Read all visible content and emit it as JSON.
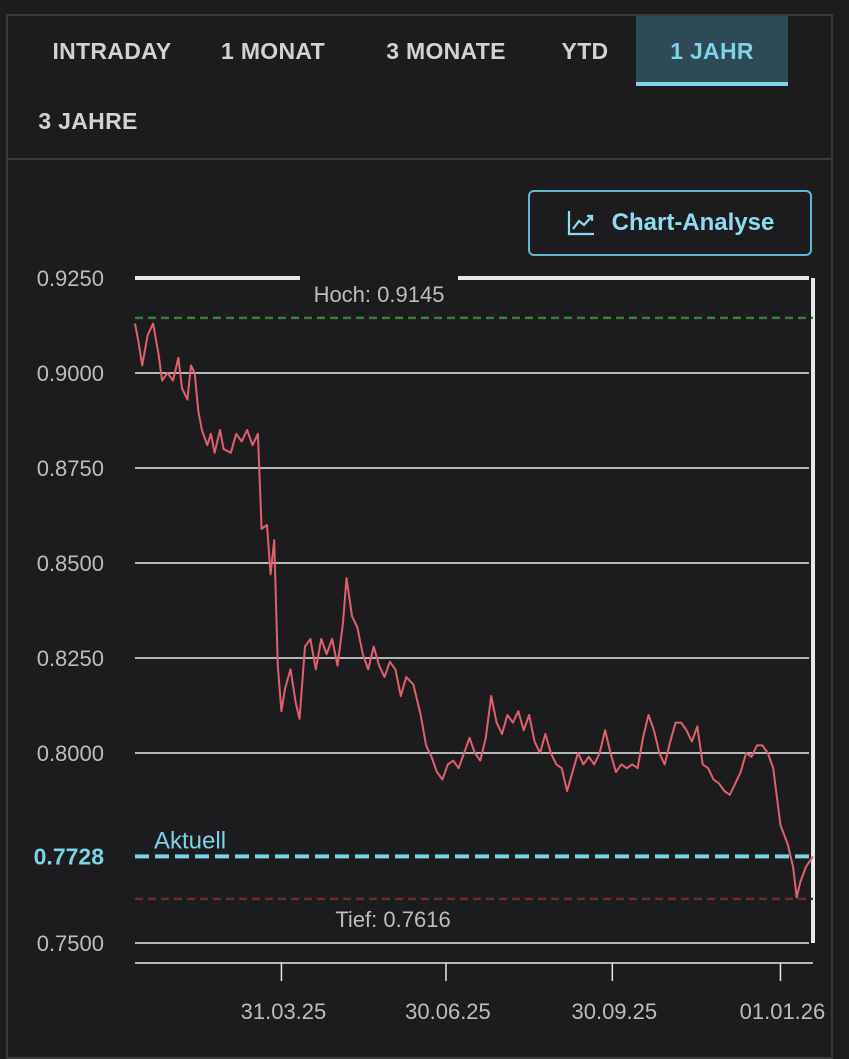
{
  "tabs": [
    {
      "label": "INTRADAY",
      "active": false
    },
    {
      "label": "1 MONAT",
      "active": false
    },
    {
      "label": "3 MONATE",
      "active": false
    },
    {
      "label": "YTD",
      "active": false
    },
    {
      "label": "1 JAHR",
      "active": true
    },
    {
      "label": "3 JAHRE",
      "active": false
    }
  ],
  "analysis_button": {
    "label": "Chart-Analyse",
    "icon": "chart-trend-icon"
  },
  "colors": {
    "line": "#e0606e",
    "current": "#7dd3ea",
    "high": "#3e7a3e",
    "low": "#6e2a2a",
    "grid": "#e8e8e8",
    "active_tab_bg": "#2d4a55"
  },
  "chart_data": {
    "type": "line",
    "y_ticks": [
      "0.9250",
      "0.9000",
      "0.8750",
      "0.8500",
      "0.8250",
      "0.8000",
      "0.7500"
    ],
    "y_tick_values": [
      0.925,
      0.9,
      0.875,
      0.85,
      0.825,
      0.8,
      0.75
    ],
    "ylim": [
      0.75,
      0.925
    ],
    "x_ticks": [
      "31.03.25",
      "30.06.25",
      "30.09.25",
      "01.01.26"
    ],
    "x_tick_dates": [
      "2025-03-31",
      "2025-06-30",
      "2025-09-30",
      "2026-01-01"
    ],
    "xlim": [
      "2025-01-09",
      "2026-01-19"
    ],
    "high_label": "Hoch: 0.9145",
    "high_value": 0.9145,
    "low_label": "Tief: 0.7616",
    "low_value": 0.7616,
    "current_label": "Aktuell",
    "current_value_text": "0.7728",
    "current_value": 0.7728,
    "series": [
      {
        "points": [
          [
            "2025-01-09",
            0.913
          ],
          [
            "2025-01-11",
            0.908
          ],
          [
            "2025-01-13",
            0.902
          ],
          [
            "2025-01-16",
            0.91
          ],
          [
            "2025-01-19",
            0.913
          ],
          [
            "2025-01-22",
            0.905
          ],
          [
            "2025-01-24",
            0.898
          ],
          [
            "2025-01-27",
            0.9
          ],
          [
            "2025-01-30",
            0.898
          ],
          [
            "2025-02-02",
            0.904
          ],
          [
            "2025-02-04",
            0.896
          ],
          [
            "2025-02-07",
            0.893
          ],
          [
            "2025-02-09",
            0.902
          ],
          [
            "2025-02-11",
            0.9
          ],
          [
            "2025-02-13",
            0.89
          ],
          [
            "2025-02-15",
            0.885
          ],
          [
            "2025-02-18",
            0.881
          ],
          [
            "2025-02-20",
            0.884
          ],
          [
            "2025-02-22",
            0.879
          ],
          [
            "2025-02-25",
            0.885
          ],
          [
            "2025-02-27",
            0.88
          ],
          [
            "2025-03-03",
            0.879
          ],
          [
            "2025-03-06",
            0.884
          ],
          [
            "2025-03-09",
            0.882
          ],
          [
            "2025-03-12",
            0.885
          ],
          [
            "2025-03-15",
            0.881
          ],
          [
            "2025-03-18",
            0.884
          ],
          [
            "2025-03-20",
            0.859
          ],
          [
            "2025-03-23",
            0.86
          ],
          [
            "2025-03-25",
            0.847
          ],
          [
            "2025-03-27",
            0.856
          ],
          [
            "2025-03-29",
            0.823
          ],
          [
            "2025-03-31",
            0.811
          ],
          [
            "2025-04-02",
            0.817
          ],
          [
            "2025-04-05",
            0.822
          ],
          [
            "2025-04-08",
            0.813
          ],
          [
            "2025-04-10",
            0.809
          ],
          [
            "2025-04-13",
            0.828
          ],
          [
            "2025-04-16",
            0.83
          ],
          [
            "2025-04-19",
            0.822
          ],
          [
            "2025-04-22",
            0.83
          ],
          [
            "2025-04-25",
            0.826
          ],
          [
            "2025-04-28",
            0.83
          ],
          [
            "2025-05-01",
            0.823
          ],
          [
            "2025-05-04",
            0.834
          ],
          [
            "2025-05-06",
            0.846
          ],
          [
            "2025-05-09",
            0.836
          ],
          [
            "2025-05-12",
            0.833
          ],
          [
            "2025-05-15",
            0.826
          ],
          [
            "2025-05-18",
            0.822
          ],
          [
            "2025-05-21",
            0.828
          ],
          [
            "2025-05-24",
            0.823
          ],
          [
            "2025-05-27",
            0.82
          ],
          [
            "2025-05-30",
            0.824
          ],
          [
            "2025-06-02",
            0.822
          ],
          [
            "2025-06-05",
            0.815
          ],
          [
            "2025-06-08",
            0.82
          ],
          [
            "2025-06-12",
            0.818
          ],
          [
            "2025-06-16",
            0.81
          ],
          [
            "2025-06-19",
            0.802
          ],
          [
            "2025-06-22",
            0.799
          ],
          [
            "2025-06-25",
            0.795
          ],
          [
            "2025-06-28",
            0.793
          ],
          [
            "2025-07-01",
            0.797
          ],
          [
            "2025-07-04",
            0.798
          ],
          [
            "2025-07-07",
            0.796
          ],
          [
            "2025-07-10",
            0.8
          ],
          [
            "2025-07-13",
            0.804
          ],
          [
            "2025-07-16",
            0.8
          ],
          [
            "2025-07-19",
            0.798
          ],
          [
            "2025-07-22",
            0.804
          ],
          [
            "2025-07-25",
            0.815
          ],
          [
            "2025-07-28",
            0.808
          ],
          [
            "2025-07-31",
            0.805
          ],
          [
            "2025-08-03",
            0.81
          ],
          [
            "2025-08-06",
            0.808
          ],
          [
            "2025-08-09",
            0.811
          ],
          [
            "2025-08-12",
            0.806
          ],
          [
            "2025-08-15",
            0.81
          ],
          [
            "2025-08-18",
            0.803
          ],
          [
            "2025-08-21",
            0.8
          ],
          [
            "2025-08-24",
            0.805
          ],
          [
            "2025-08-27",
            0.8
          ],
          [
            "2025-08-30",
            0.797
          ],
          [
            "2025-09-02",
            0.796
          ],
          [
            "2025-09-05",
            0.79
          ],
          [
            "2025-09-08",
            0.795
          ],
          [
            "2025-09-11",
            0.8
          ],
          [
            "2025-09-14",
            0.797
          ],
          [
            "2025-09-17",
            0.799
          ],
          [
            "2025-09-20",
            0.797
          ],
          [
            "2025-09-23",
            0.8
          ],
          [
            "2025-09-26",
            0.806
          ],
          [
            "2025-09-29",
            0.8
          ],
          [
            "2025-10-02",
            0.795
          ],
          [
            "2025-10-05",
            0.797
          ],
          [
            "2025-10-08",
            0.796
          ],
          [
            "2025-10-11",
            0.797
          ],
          [
            "2025-10-14",
            0.796
          ],
          [
            "2025-10-17",
            0.804
          ],
          [
            "2025-10-20",
            0.81
          ],
          [
            "2025-10-23",
            0.806
          ],
          [
            "2025-10-26",
            0.8
          ],
          [
            "2025-10-29",
            0.797
          ],
          [
            "2025-11-01",
            0.803
          ],
          [
            "2025-11-04",
            0.808
          ],
          [
            "2025-11-07",
            0.808
          ],
          [
            "2025-11-10",
            0.806
          ],
          [
            "2025-11-13",
            0.803
          ],
          [
            "2025-11-16",
            0.807
          ],
          [
            "2025-11-19",
            0.797
          ],
          [
            "2025-11-22",
            0.796
          ],
          [
            "2025-11-25",
            0.793
          ],
          [
            "2025-11-28",
            0.792
          ],
          [
            "2025-12-01",
            0.79
          ],
          [
            "2025-12-04",
            0.789
          ],
          [
            "2025-12-07",
            0.792
          ],
          [
            "2025-12-10",
            0.795
          ],
          [
            "2025-12-13",
            0.8
          ],
          [
            "2025-12-16",
            0.799
          ],
          [
            "2025-12-19",
            0.802
          ],
          [
            "2025-12-22",
            0.802
          ],
          [
            "2025-12-25",
            0.8
          ],
          [
            "2025-12-28",
            0.796
          ],
          [
            "2026-01-01",
            0.781
          ],
          [
            "2026-01-05",
            0.776
          ],
          [
            "2026-01-08",
            0.77
          ],
          [
            "2026-01-10",
            0.762
          ],
          [
            "2026-01-12",
            0.766
          ],
          [
            "2026-01-15",
            0.77
          ],
          [
            "2026-01-19",
            0.7728
          ]
        ]
      }
    ]
  }
}
